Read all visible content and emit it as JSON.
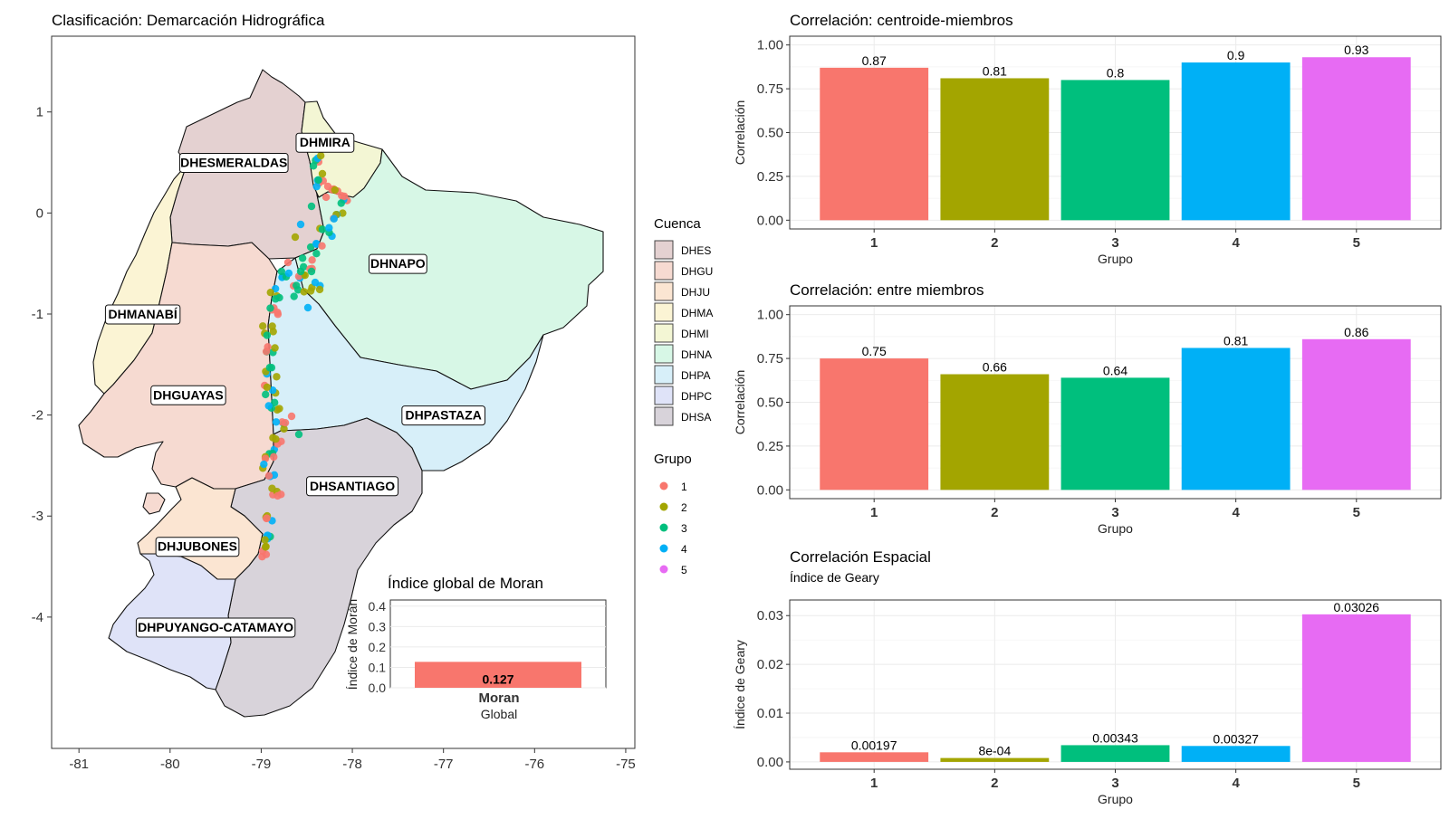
{
  "map": {
    "title": "Clasificación: Demarcación Hidrográfica",
    "x_ticks": [
      "-81",
      "-80",
      "-79",
      "-78",
      "-77",
      "-76",
      "-75"
    ],
    "y_ticks": [
      "1",
      "0",
      "-1",
      "-2",
      "-3",
      "-4"
    ],
    "x_range": [
      -81.3,
      -74.9
    ],
    "y_range": [
      -5.3,
      1.75
    ],
    "region_labels": [
      {
        "text": "DHESMERALDAS",
        "lon": -79.3,
        "lat": 0.5
      },
      {
        "text": "DHMIRA",
        "lon": -78.3,
        "lat": 0.7
      },
      {
        "text": "DHNAPO",
        "lon": -77.5,
        "lat": -0.5
      },
      {
        "text": "DHMANABÍ",
        "lon": -80.3,
        "lat": -1.0
      },
      {
        "text": "DHGUAYAS",
        "lon": -79.8,
        "lat": -1.8
      },
      {
        "text": "DHPASTAZA",
        "lon": -77.0,
        "lat": -2.0
      },
      {
        "text": "DHSANTIAGO",
        "lon": -78.0,
        "lat": -2.7
      },
      {
        "text": "DHJUBONES",
        "lon": -79.7,
        "lat": -3.3
      },
      {
        "text": "DHPUYANGO-CATAMAYO",
        "lon": -79.5,
        "lat": -4.1
      }
    ]
  },
  "legend": {
    "cuenca_title": "Cuenca",
    "cuenca_items": [
      {
        "label": "DHES",
        "color": "#e4d1d1"
      },
      {
        "label": "DHGU",
        "color": "#f6dad1"
      },
      {
        "label": "DHJU",
        "color": "#fbe5d2"
      },
      {
        "label": "DHMA",
        "color": "#fbf4d4"
      },
      {
        "label": "DHMI",
        "color": "#f3f6d4"
      },
      {
        "label": "DHNA",
        "color": "#d7f7e6"
      },
      {
        "label": "DHPA",
        "color": "#d7eff9"
      },
      {
        "label": "DHPC",
        "color": "#dfe3f8"
      },
      {
        "label": "DHSA",
        "color": "#d8d3da"
      }
    ],
    "grupo_title": "Grupo",
    "grupo_items": [
      {
        "label": "1",
        "color": "#F8766D"
      },
      {
        "label": "2",
        "color": "#A3A500"
      },
      {
        "label": "3",
        "color": "#00BF7D"
      },
      {
        "label": "4",
        "color": "#00B0F6"
      },
      {
        "label": "5",
        "color": "#E76BF3"
      }
    ]
  },
  "moran_inset": {
    "title": "Índice global de Moran",
    "ylabel": "Índice de Morán",
    "y_ticks": [
      "0.0",
      "0.1",
      "0.2",
      "0.3",
      "0.4"
    ],
    "ylim": [
      0,
      0.43
    ],
    "value": 0.127,
    "value_label": "0.127",
    "category": "Moran",
    "xlabel": "Global",
    "color": "#F8766D"
  },
  "chart_data": [
    {
      "type": "bar",
      "title": "Correlación: centroide-miembros",
      "xlabel": "Grupo",
      "ylabel": "Correlación",
      "categories": [
        "1",
        "2",
        "3",
        "4",
        "5"
      ],
      "values": [
        0.87,
        0.81,
        0.8,
        0.9,
        0.93
      ],
      "value_labels": [
        "0.87",
        "0.81",
        "0.8",
        "0.9",
        "0.93"
      ],
      "y_ticks": [
        "0.00",
        "0.25",
        "0.50",
        "0.75",
        "1.00"
      ],
      "ylim": [
        -0.05,
        1.05
      ]
    },
    {
      "type": "bar",
      "title": "Correlación: entre miembros",
      "xlabel": "Grupo",
      "ylabel": "Correlación",
      "categories": [
        "1",
        "2",
        "3",
        "4",
        "5"
      ],
      "values": [
        0.75,
        0.66,
        0.64,
        0.81,
        0.86
      ],
      "value_labels": [
        "0.75",
        "0.66",
        "0.64",
        "0.81",
        "0.86"
      ],
      "y_ticks": [
        "0.00",
        "0.25",
        "0.50",
        "0.75",
        "1.00"
      ],
      "ylim": [
        -0.05,
        1.05
      ]
    },
    {
      "type": "bar",
      "title": "Correlación Espacial",
      "subtitle": "Índice de Geary",
      "xlabel": "Grupo",
      "ylabel": "Índice de Geary",
      "categories": [
        "1",
        "2",
        "3",
        "4",
        "5"
      ],
      "values": [
        0.00197,
        0.0008,
        0.00343,
        0.00327,
        0.03026
      ],
      "value_labels": [
        "0.00197",
        "8e-04",
        "0.00343",
        "0.00327",
        "0.03026"
      ],
      "y_ticks": [
        "0.00",
        "0.01",
        "0.02",
        "0.03"
      ],
      "ylim": [
        -0.0015,
        0.0332
      ]
    }
  ],
  "bar_colors": [
    "#F8766D",
    "#A3A500",
    "#00BF7D",
    "#00B0F6",
    "#E76BF3"
  ]
}
